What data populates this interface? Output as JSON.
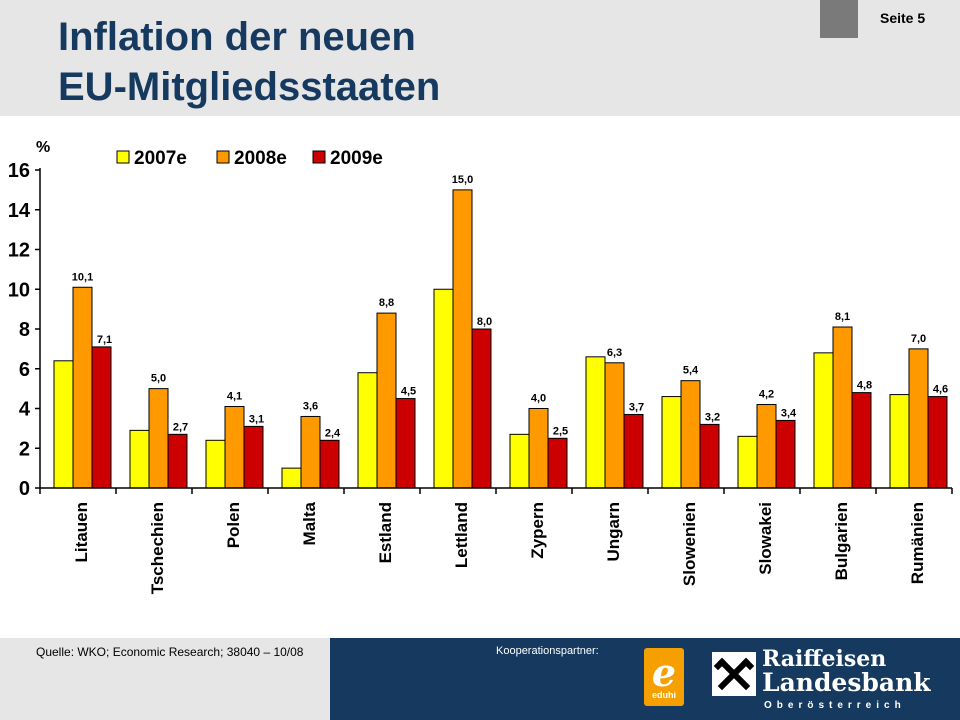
{
  "header": {
    "title_line1": "Inflation der neuen",
    "title_line2": "EU-Mitgliedsstaaten",
    "page_label": "Seite 5"
  },
  "footer": {
    "source": "Quelle: WKO; Economic Research; 38040 – 10/08",
    "partner_label": "Kooperationspartner:",
    "eduhi_letter": "e",
    "eduhi_name": "eduhi",
    "bank_line1": "Raiffeisen",
    "bank_line2": "Landesbank",
    "bank_line3": "Oberösterreich"
  },
  "colors": {
    "header_bg": "#e6e6e6",
    "footer_dark": "#163a5f",
    "title": "#163a5f"
  },
  "icons": {
    "eduhi": "eduhi-logo",
    "bank": "raiffeisen-giebelkreuz-logo"
  },
  "chart_data": {
    "type": "bar",
    "ylabel": "%",
    "ylim": [
      0,
      16
    ],
    "yticks": [
      0,
      2,
      4,
      6,
      8,
      10,
      12,
      14,
      16
    ],
    "grid": false,
    "legend_position": "top",
    "categories": [
      "Litauen",
      "Tschechien",
      "Polen",
      "Malta",
      "Estland",
      "Lettland",
      "Zypern",
      "Ungarn",
      "Slowenien",
      "Slowakei",
      "Bulgarien",
      "Rumänien"
    ],
    "series": [
      {
        "name": "2007e",
        "color": "#ffff00",
        "values": [
          6.4,
          2.9,
          2.4,
          1.0,
          5.8,
          10.0,
          2.7,
          6.6,
          4.6,
          2.6,
          6.8,
          4.7
        ],
        "labels": [
          "",
          "",
          "",
          "",
          "",
          "",
          "",
          "",
          "",
          "",
          "",
          ""
        ]
      },
      {
        "name": "2008e",
        "color": "#ff9900",
        "values": [
          10.1,
          5.0,
          4.1,
          3.6,
          8.8,
          15.0,
          4.0,
          6.3,
          5.4,
          4.2,
          8.1,
          7.0
        ],
        "labels": [
          "10,1",
          "5,0",
          "4,1",
          "3,6",
          "8,8",
          "15,0",
          "4,0",
          "6,3",
          "5,4",
          "4,2",
          "8,1",
          "7,0"
        ]
      },
      {
        "name": "2009e",
        "color": "#cc0000",
        "values": [
          7.1,
          2.7,
          3.1,
          2.4,
          4.5,
          8.0,
          2.5,
          3.7,
          3.2,
          3.4,
          4.8,
          4.6
        ],
        "labels": [
          "7,1",
          "2,7",
          "3,1",
          "2,4",
          "4,5",
          "8,0",
          "2,5",
          "3,7",
          "3,2",
          "3,4",
          "4,8",
          "4,6"
        ]
      }
    ]
  }
}
